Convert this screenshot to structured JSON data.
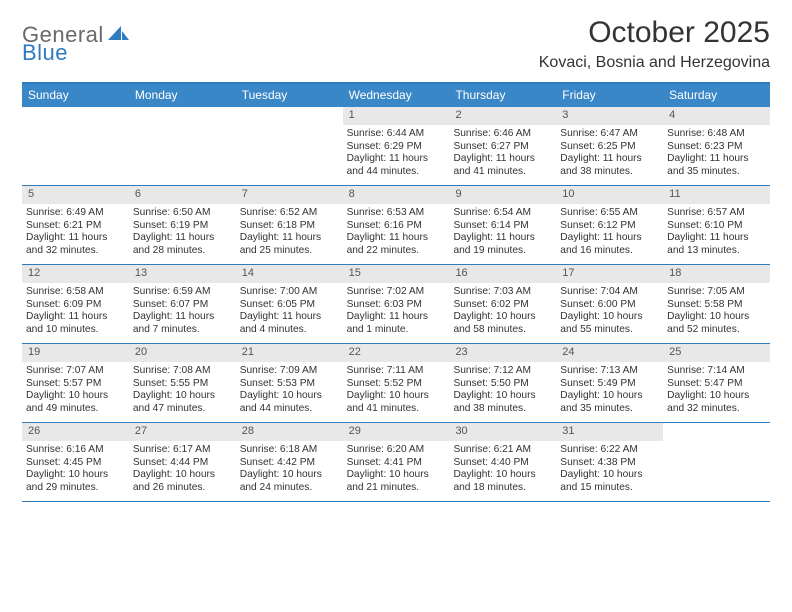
{
  "brand": {
    "part1": "General",
    "part2": "Blue"
  },
  "title": "October 2025",
  "location": "Kovaci, Bosnia and Herzegovina",
  "colors": {
    "header_blue": "#3a87c8",
    "rule_blue": "#2f7bbf",
    "num_bg": "#e8e8e8",
    "text": "#333333",
    "logo_gray": "#6a6a6a"
  },
  "dow": [
    "Sunday",
    "Monday",
    "Tuesday",
    "Wednesday",
    "Thursday",
    "Friday",
    "Saturday"
  ],
  "weeks": [
    [
      {
        "n": "",
        "empty": true
      },
      {
        "n": "",
        "empty": true
      },
      {
        "n": "",
        "empty": true
      },
      {
        "n": "1",
        "sr": "6:44 AM",
        "ss": "6:29 PM",
        "dl": "11 hours and 44 minutes."
      },
      {
        "n": "2",
        "sr": "6:46 AM",
        "ss": "6:27 PM",
        "dl": "11 hours and 41 minutes."
      },
      {
        "n": "3",
        "sr": "6:47 AM",
        "ss": "6:25 PM",
        "dl": "11 hours and 38 minutes."
      },
      {
        "n": "4",
        "sr": "6:48 AM",
        "ss": "6:23 PM",
        "dl": "11 hours and 35 minutes."
      }
    ],
    [
      {
        "n": "5",
        "sr": "6:49 AM",
        "ss": "6:21 PM",
        "dl": "11 hours and 32 minutes."
      },
      {
        "n": "6",
        "sr": "6:50 AM",
        "ss": "6:19 PM",
        "dl": "11 hours and 28 minutes."
      },
      {
        "n": "7",
        "sr": "6:52 AM",
        "ss": "6:18 PM",
        "dl": "11 hours and 25 minutes."
      },
      {
        "n": "8",
        "sr": "6:53 AM",
        "ss": "6:16 PM",
        "dl": "11 hours and 22 minutes."
      },
      {
        "n": "9",
        "sr": "6:54 AM",
        "ss": "6:14 PM",
        "dl": "11 hours and 19 minutes."
      },
      {
        "n": "10",
        "sr": "6:55 AM",
        "ss": "6:12 PM",
        "dl": "11 hours and 16 minutes."
      },
      {
        "n": "11",
        "sr": "6:57 AM",
        "ss": "6:10 PM",
        "dl": "11 hours and 13 minutes."
      }
    ],
    [
      {
        "n": "12",
        "sr": "6:58 AM",
        "ss": "6:09 PM",
        "dl": "11 hours and 10 minutes."
      },
      {
        "n": "13",
        "sr": "6:59 AM",
        "ss": "6:07 PM",
        "dl": "11 hours and 7 minutes."
      },
      {
        "n": "14",
        "sr": "7:00 AM",
        "ss": "6:05 PM",
        "dl": "11 hours and 4 minutes."
      },
      {
        "n": "15",
        "sr": "7:02 AM",
        "ss": "6:03 PM",
        "dl": "11 hours and 1 minute."
      },
      {
        "n": "16",
        "sr": "7:03 AM",
        "ss": "6:02 PM",
        "dl": "10 hours and 58 minutes."
      },
      {
        "n": "17",
        "sr": "7:04 AM",
        "ss": "6:00 PM",
        "dl": "10 hours and 55 minutes."
      },
      {
        "n": "18",
        "sr": "7:05 AM",
        "ss": "5:58 PM",
        "dl": "10 hours and 52 minutes."
      }
    ],
    [
      {
        "n": "19",
        "sr": "7:07 AM",
        "ss": "5:57 PM",
        "dl": "10 hours and 49 minutes."
      },
      {
        "n": "20",
        "sr": "7:08 AM",
        "ss": "5:55 PM",
        "dl": "10 hours and 47 minutes."
      },
      {
        "n": "21",
        "sr": "7:09 AM",
        "ss": "5:53 PM",
        "dl": "10 hours and 44 minutes."
      },
      {
        "n": "22",
        "sr": "7:11 AM",
        "ss": "5:52 PM",
        "dl": "10 hours and 41 minutes."
      },
      {
        "n": "23",
        "sr": "7:12 AM",
        "ss": "5:50 PM",
        "dl": "10 hours and 38 minutes."
      },
      {
        "n": "24",
        "sr": "7:13 AM",
        "ss": "5:49 PM",
        "dl": "10 hours and 35 minutes."
      },
      {
        "n": "25",
        "sr": "7:14 AM",
        "ss": "5:47 PM",
        "dl": "10 hours and 32 minutes."
      }
    ],
    [
      {
        "n": "26",
        "sr": "6:16 AM",
        "ss": "4:45 PM",
        "dl": "10 hours and 29 minutes."
      },
      {
        "n": "27",
        "sr": "6:17 AM",
        "ss": "4:44 PM",
        "dl": "10 hours and 26 minutes."
      },
      {
        "n": "28",
        "sr": "6:18 AM",
        "ss": "4:42 PM",
        "dl": "10 hours and 24 minutes."
      },
      {
        "n": "29",
        "sr": "6:20 AM",
        "ss": "4:41 PM",
        "dl": "10 hours and 21 minutes."
      },
      {
        "n": "30",
        "sr": "6:21 AM",
        "ss": "4:40 PM",
        "dl": "10 hours and 18 minutes."
      },
      {
        "n": "31",
        "sr": "6:22 AM",
        "ss": "4:38 PM",
        "dl": "10 hours and 15 minutes."
      },
      {
        "n": "",
        "empty": true
      }
    ]
  ],
  "labels": {
    "sunrise": "Sunrise:",
    "sunset": "Sunset:",
    "daylight": "Daylight:"
  }
}
